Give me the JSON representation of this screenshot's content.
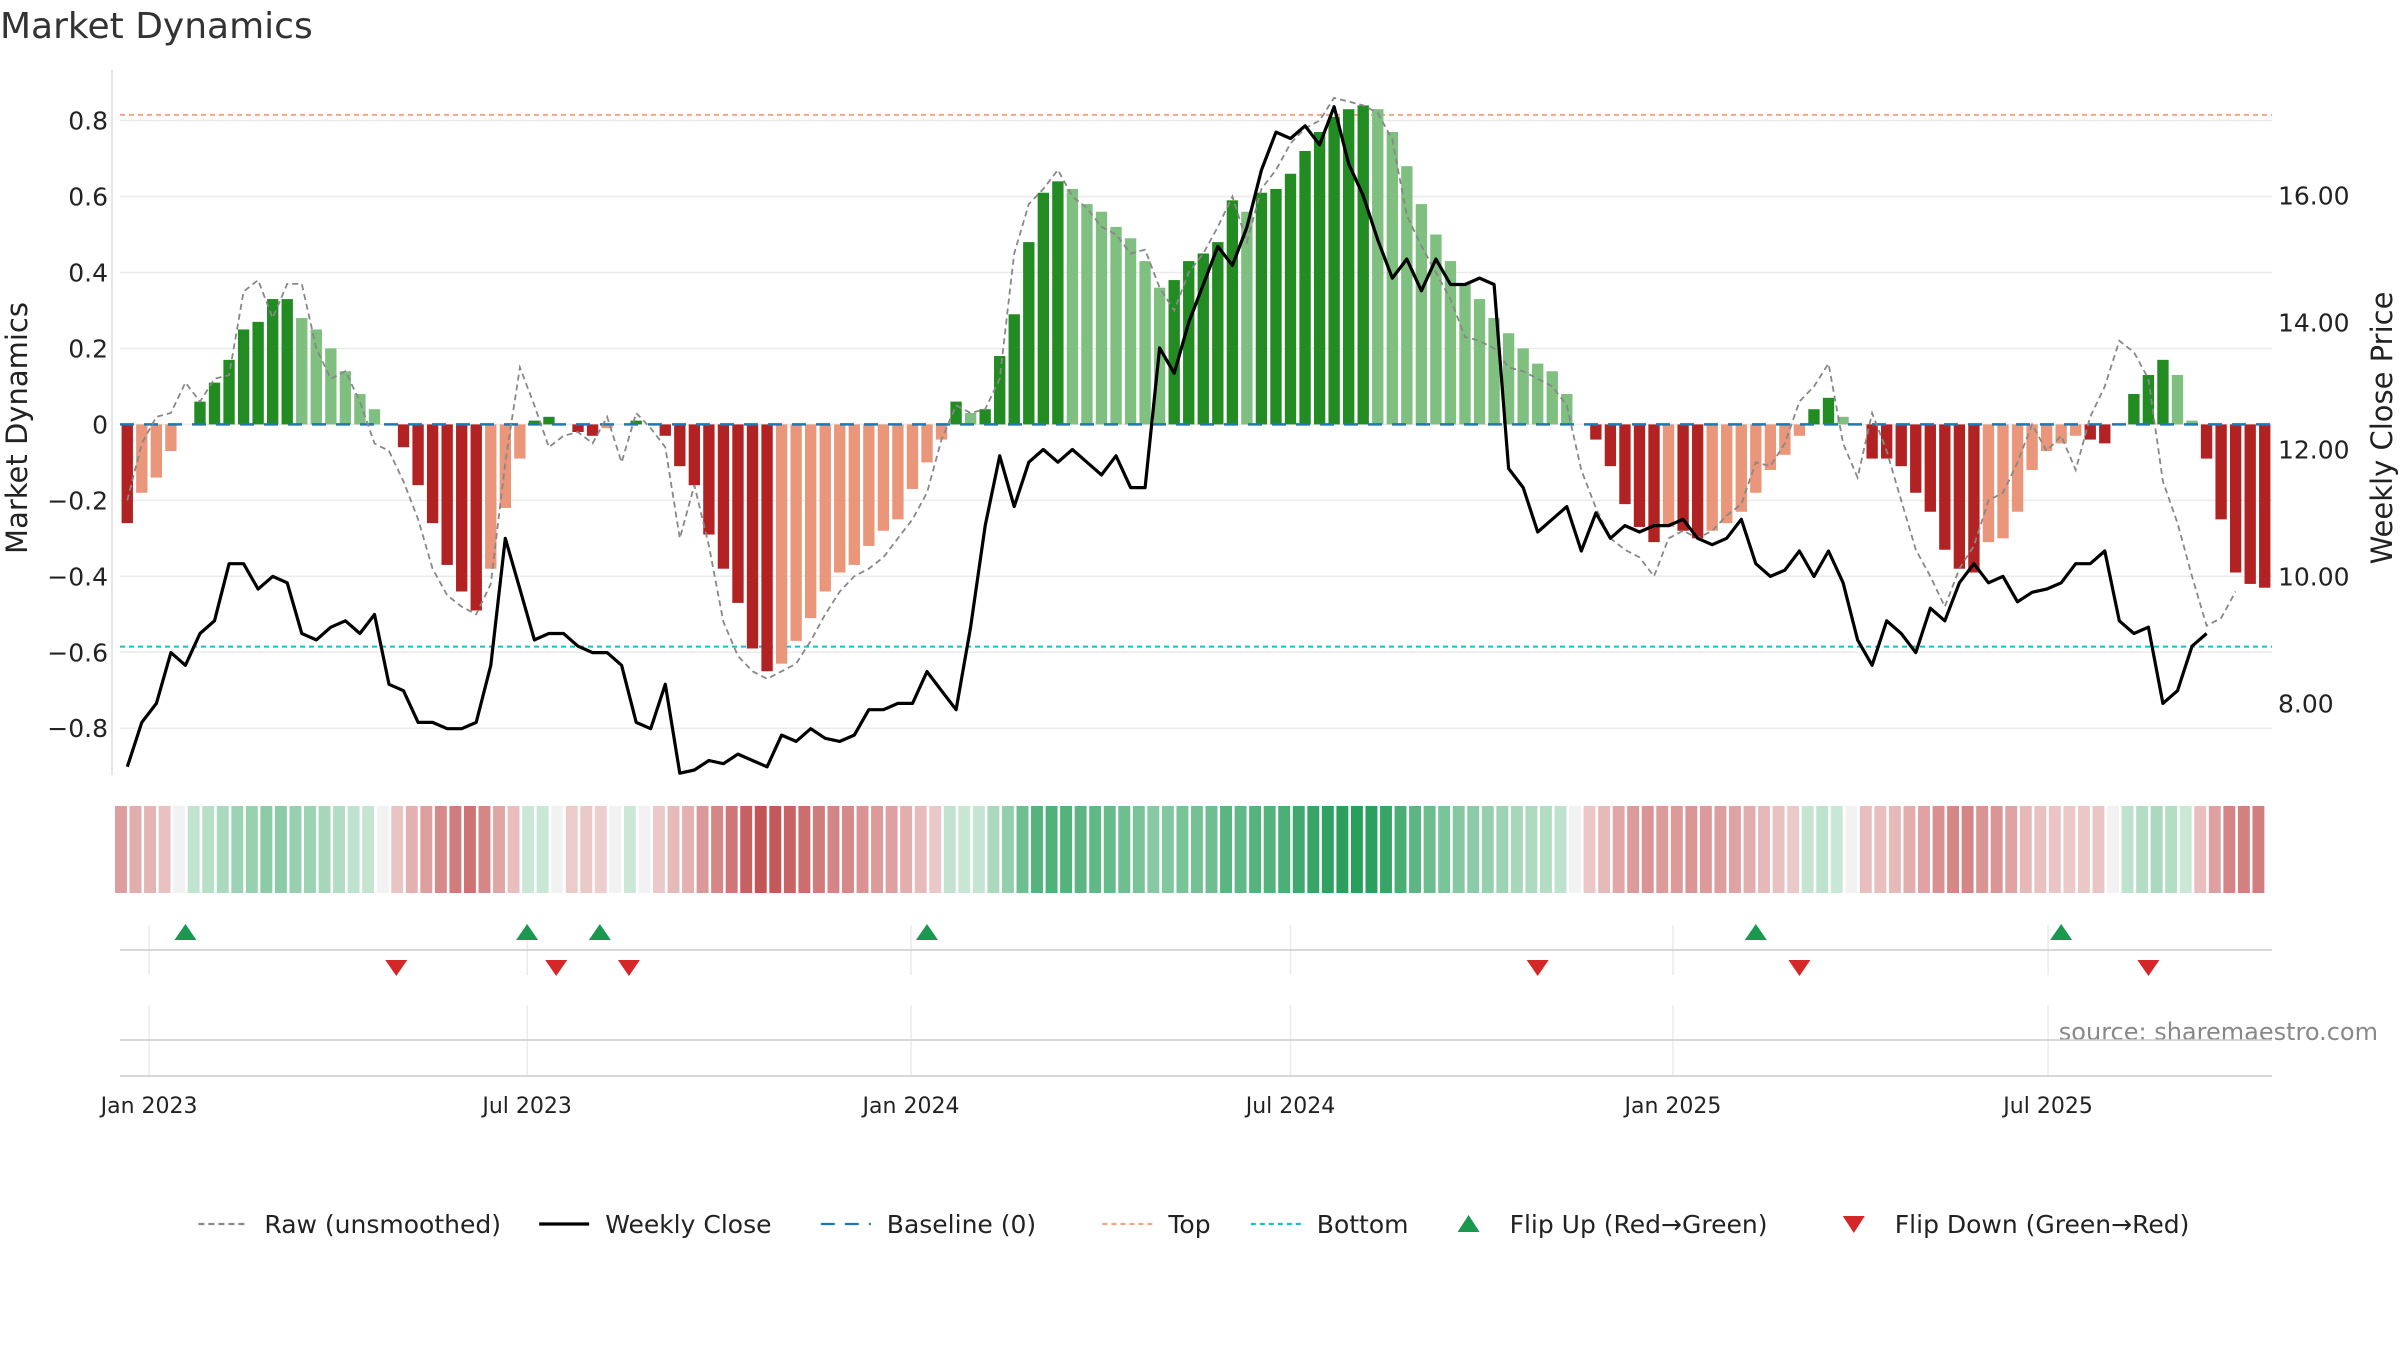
{
  "title": "Market Dynamics",
  "source": "source: sharemaestro.com",
  "chart_data": {
    "type": "bar",
    "title": "Market Dynamics",
    "ylabel": "Market Dynamics",
    "y2label": "Weekly Close Price",
    "ylim": [
      -0.91,
      0.92
    ],
    "y2lim": [
      6.95,
      17.9
    ],
    "yticks": [
      -0.8,
      -0.6,
      -0.4,
      -0.2,
      0,
      0.2,
      0.4,
      0.6,
      0.8
    ],
    "y2ticks": [
      8,
      10,
      12,
      14,
      16
    ],
    "ytick_labels": [
      "−0.8",
      "−0.6",
      "−0.4",
      "−0.2",
      "0",
      "0.2",
      "0.4",
      "0.6",
      "0.8"
    ],
    "y2tick_labels": [
      "8.00",
      "10.00",
      "12.00",
      "14.00",
      "16.00"
    ],
    "xticks": [
      {
        "week": 2,
        "label": "Jan 2023"
      },
      {
        "week": 28,
        "label": "Jul 2023"
      },
      {
        "week": 54.4,
        "label": "Jan 2024"
      },
      {
        "week": 80.5,
        "label": "Jul 2024"
      },
      {
        "week": 106.8,
        "label": "Jan 2025"
      },
      {
        "week": 132.6,
        "label": "Jul 2025"
      }
    ],
    "grid": true,
    "legend_position": "bottom",
    "colors": {
      "green_strong": "#228b22",
      "green_light": "#7fbf7f",
      "red_strong": "#b22222",
      "red_light": "#e9967a",
      "close": "#000000",
      "raw": "#888888",
      "baseline": "#1f77b4",
      "top": "#f4a582",
      "bottom": "#17becf",
      "flip_up": "#1a9850",
      "flip_down": "#d62728"
    },
    "top_level": 0.815,
    "bottom_level": -0.585,
    "baseline_level": 0,
    "start_date": "2023-01-02",
    "series": [
      {
        "name": "Market Dynamics",
        "values": [
          -0.26,
          -0.18,
          -0.14,
          -0.07,
          0,
          0.06,
          0.11,
          0.17,
          0.25,
          0.27,
          0.33,
          0.33,
          0.28,
          0.25,
          0.2,
          0.14,
          0.08,
          0.04,
          0,
          -0.06,
          -0.16,
          -0.26,
          -0.37,
          -0.44,
          -0.49,
          -0.38,
          -0.22,
          -0.09,
          0.01,
          0.02,
          0,
          -0.02,
          -0.03,
          -0.01,
          0,
          0.01,
          0,
          -0.03,
          -0.11,
          -0.16,
          -0.29,
          -0.38,
          -0.47,
          -0.59,
          -0.65,
          -0.63,
          -0.57,
          -0.51,
          -0.44,
          -0.39,
          -0.37,
          -0.32,
          -0.28,
          -0.25,
          -0.17,
          -0.1,
          -0.04,
          0.06,
          0.03,
          0.04,
          0.18,
          0.29,
          0.48,
          0.61,
          0.64,
          0.62,
          0.58,
          0.56,
          0.52,
          0.49,
          0.43,
          0.36,
          0.38,
          0.43,
          0.45,
          0.48,
          0.59,
          0.56,
          0.61,
          0.62,
          0.66,
          0.72,
          0.77,
          0.81,
          0.83,
          0.84,
          0.83,
          0.77,
          0.68,
          0.58,
          0.5,
          0.43,
          0.37,
          0.33,
          0.28,
          0.24,
          0.2,
          0.16,
          0.14,
          0.08,
          0,
          -0.04,
          -0.11,
          -0.21,
          -0.27,
          -0.31,
          -0.27,
          -0.28,
          -0.3,
          -0.28,
          -0.26,
          -0.23,
          -0.18,
          -0.12,
          -0.08,
          -0.03,
          0.04,
          0.07,
          0.02,
          0,
          -0.09,
          -0.09,
          -0.11,
          -0.18,
          -0.23,
          -0.33,
          -0.38,
          -0.39,
          -0.31,
          -0.3,
          -0.23,
          -0.12,
          -0.07,
          -0.05,
          -0.03,
          -0.04,
          -0.05,
          0,
          0.08,
          0.13,
          0.17,
          0.13,
          0.01,
          -0.09,
          -0.25,
          -0.39,
          -0.42,
          -0.43
        ]
      },
      {
        "name": "Raw (unsmoothed)",
        "values": [
          -0.2,
          -0.05,
          0.02,
          0.03,
          0.11,
          0.06,
          0.12,
          0.13,
          0.35,
          0.38,
          0.28,
          0.37,
          0.37,
          0.2,
          0.12,
          0.14,
          0.06,
          -0.05,
          -0.07,
          -0.15,
          -0.25,
          -0.38,
          -0.45,
          -0.48,
          -0.5,
          -0.42,
          -0.1,
          0.15,
          0.05,
          -0.06,
          -0.03,
          -0.02,
          -0.05,
          0.02,
          -0.1,
          0.03,
          -0.01,
          -0.06,
          -0.3,
          -0.16,
          -0.32,
          -0.52,
          -0.61,
          -0.65,
          -0.67,
          -0.65,
          -0.63,
          -0.57,
          -0.5,
          -0.44,
          -0.4,
          -0.38,
          -0.35,
          -0.3,
          -0.25,
          -0.18,
          -0.04,
          0.05,
          0.03,
          0.04,
          0.12,
          0.45,
          0.58,
          0.62,
          0.67,
          0.6,
          0.57,
          0.52,
          0.5,
          0.45,
          0.46,
          0.36,
          0.3,
          0.4,
          0.45,
          0.52,
          0.6,
          0.48,
          0.62,
          0.67,
          0.74,
          0.78,
          0.8,
          0.86,
          0.85,
          0.84,
          0.82,
          0.75,
          0.55,
          0.47,
          0.4,
          0.33,
          0.23,
          0.22,
          0.2,
          0.15,
          0.14,
          0.12,
          0.1,
          0.05,
          -0.12,
          -0.22,
          -0.3,
          -0.33,
          -0.35,
          -0.4,
          -0.3,
          -0.28,
          -0.3,
          -0.28,
          -0.24,
          -0.21,
          -0.1,
          -0.11,
          -0.05,
          0.06,
          0.1,
          0.16,
          -0.05,
          -0.14,
          0.03,
          -0.07,
          -0.2,
          -0.33,
          -0.4,
          -0.48,
          -0.38,
          -0.32,
          -0.2,
          -0.18,
          -0.1,
          0,
          -0.07,
          -0.03,
          -0.12,
          0.02,
          0.1,
          0.22,
          0.19,
          0.12,
          -0.15,
          -0.26,
          -0.4,
          -0.53,
          -0.51,
          -0.44
        ]
      },
      {
        "name": "Weekly Close",
        "values": [
          7.0,
          7.7,
          8.0,
          8.8,
          8.6,
          9.1,
          9.3,
          10.2,
          10.2,
          9.8,
          10.0,
          9.9,
          9.1,
          9.0,
          9.2,
          9.3,
          9.1,
          9.4,
          8.3,
          8.2,
          7.7,
          7.7,
          7.6,
          7.6,
          7.7,
          8.6,
          10.6,
          9.8,
          9.0,
          9.1,
          9.1,
          8.9,
          8.8,
          8.8,
          8.6,
          7.7,
          7.6,
          8.3,
          6.9,
          6.95,
          7.1,
          7.05,
          7.2,
          7.1,
          7.0,
          7.5,
          7.4,
          7.6,
          7.45,
          7.4,
          7.5,
          7.9,
          7.9,
          8.0,
          8.0,
          8.5,
          8.2,
          7.9,
          9.2,
          10.8,
          11.9,
          11.1,
          11.8,
          12.0,
          11.8,
          12.0,
          11.8,
          11.6,
          11.9,
          11.4,
          11.4,
          13.6,
          13.2,
          14.0,
          14.6,
          15.2,
          14.9,
          15.5,
          16.4,
          17.0,
          16.9,
          17.1,
          16.8,
          17.4,
          16.5,
          16.0,
          15.3,
          14.7,
          15.0,
          14.5,
          15.0,
          14.6,
          14.6,
          14.7,
          14.6,
          11.7,
          11.4,
          10.7,
          10.9,
          11.1,
          10.4,
          11.0,
          10.6,
          10.8,
          10.7,
          10.8,
          10.8,
          10.9,
          10.6,
          10.5,
          10.6,
          10.9,
          10.2,
          10.0,
          10.1,
          10.4,
          10.0,
          10.4,
          9.9,
          9.0,
          8.6,
          9.3,
          9.1,
          8.8,
          9.5,
          9.3,
          9.9,
          10.2,
          9.9,
          10.0,
          9.6,
          9.75,
          9.8,
          9.9,
          10.2,
          10.2,
          10.4,
          9.3,
          9.1,
          9.2,
          8.0,
          8.2,
          8.9,
          9.1
        ]
      }
    ],
    "regime_strip": [
      -0.26,
      -0.18,
      -0.14,
      -0.07,
      0,
      0.06,
      0.11,
      0.17,
      0.25,
      0.27,
      0.33,
      0.33,
      0.28,
      0.25,
      0.2,
      0.14,
      0.08,
      0.04,
      0,
      -0.06,
      -0.16,
      -0.26,
      -0.37,
      -0.44,
      -0.49,
      -0.38,
      -0.22,
      -0.09,
      0.01,
      0.02,
      0,
      -0.02,
      -0.03,
      -0.01,
      0,
      0.01,
      0,
      -0.03,
      -0.11,
      -0.16,
      -0.29,
      -0.38,
      -0.47,
      -0.59,
      -0.65,
      -0.63,
      -0.57,
      -0.51,
      -0.44,
      -0.39,
      -0.37,
      -0.32,
      -0.28,
      -0.25,
      -0.17,
      -0.1,
      -0.04,
      0.06,
      0.03,
      0.04,
      0.18,
      0.29,
      0.48,
      0.61,
      0.64,
      0.62,
      0.58,
      0.56,
      0.52,
      0.49,
      0.43,
      0.36,
      0.38,
      0.43,
      0.45,
      0.48,
      0.59,
      0.56,
      0.61,
      0.62,
      0.66,
      0.72,
      0.77,
      0.81,
      0.83,
      0.84,
      0.83,
      0.77,
      0.68,
      0.58,
      0.5,
      0.43,
      0.37,
      0.33,
      0.28,
      0.24,
      0.2,
      0.16,
      0.14,
      0.08,
      0,
      -0.04,
      -0.11,
      -0.21,
      -0.27,
      -0.31,
      -0.27,
      -0.28,
      -0.3,
      -0.28,
      -0.26,
      -0.23,
      -0.18,
      -0.12,
      -0.08,
      -0.03,
      0.04,
      0.07,
      0.02,
      0,
      -0.09,
      -0.09,
      -0.11,
      -0.18,
      -0.23,
      -0.33,
      -0.38,
      -0.39,
      -0.31,
      -0.3,
      -0.23,
      -0.12,
      -0.07,
      -0.05,
      -0.03,
      -0.04,
      -0.05,
      0,
      0.08,
      0.13,
      0.17,
      0.13,
      0.01,
      -0.09,
      -0.25,
      -0.39,
      -0.42,
      -0.43
    ],
    "flips": {
      "up_weeks": [
        4,
        27.5,
        32.5,
        55,
        112,
        133
      ],
      "down_weeks": [
        18.5,
        29.5,
        34.5,
        97,
        115,
        139
      ]
    },
    "legend": [
      {
        "label": "Raw (unsmoothed)",
        "kind": "dashed",
        "color": "#888888"
      },
      {
        "label": "Weekly Close",
        "kind": "solid",
        "color": "#000000"
      },
      {
        "label": "Baseline (0)",
        "kind": "longdash",
        "color": "#1f77b4"
      },
      {
        "label": "Top",
        "kind": "dotted",
        "color": "#f4a582"
      },
      {
        "label": "Bottom",
        "kind": "dotted",
        "color": "#17becf"
      },
      {
        "label": "Flip Up (Red→Green)",
        "kind": "triangle-up",
        "color": "#1a9850"
      },
      {
        "label": "Flip Down (Green→Red)",
        "kind": "triangle-down",
        "color": "#d62728"
      }
    ]
  }
}
